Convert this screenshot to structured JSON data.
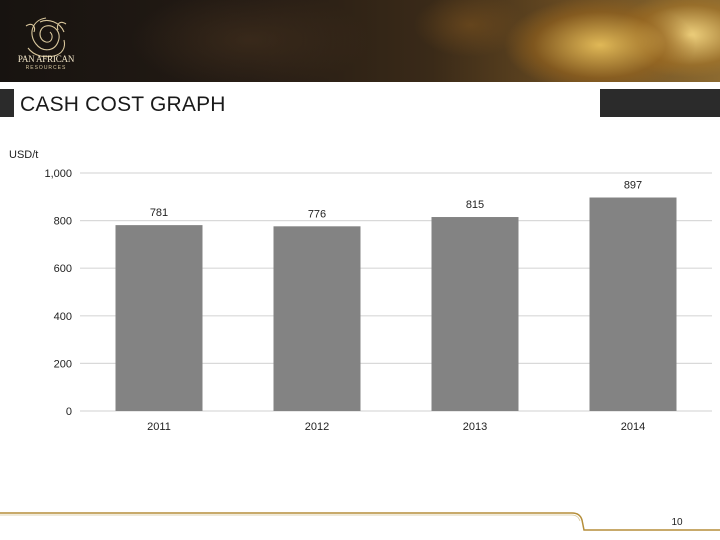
{
  "company": {
    "name": "PAN AFRICAN",
    "tagline": "RESOURCES"
  },
  "slide": {
    "title": "CASH COST GRAPH",
    "page_number": "10"
  },
  "colors": {
    "bar": "#838383",
    "grid": "#d9d9d9",
    "title_bar": "#2b2b2b",
    "footer_line": "#b58e3a"
  },
  "chart_data": {
    "type": "bar",
    "title": "",
    "ylabel": "USD/t",
    "xlabel": "",
    "categories": [
      "2011",
      "2012",
      "2013",
      "2014"
    ],
    "values": [
      781,
      776,
      815,
      897
    ],
    "value_labels": [
      "781",
      "776",
      "815",
      "897"
    ],
    "ylim": [
      0,
      1000
    ],
    "yticks": [
      0,
      200,
      400,
      600,
      800,
      1000
    ],
    "ytick_labels": [
      "0",
      "200",
      "400",
      "600",
      "800",
      "1,000"
    ],
    "grid": true,
    "legend": "none"
  }
}
